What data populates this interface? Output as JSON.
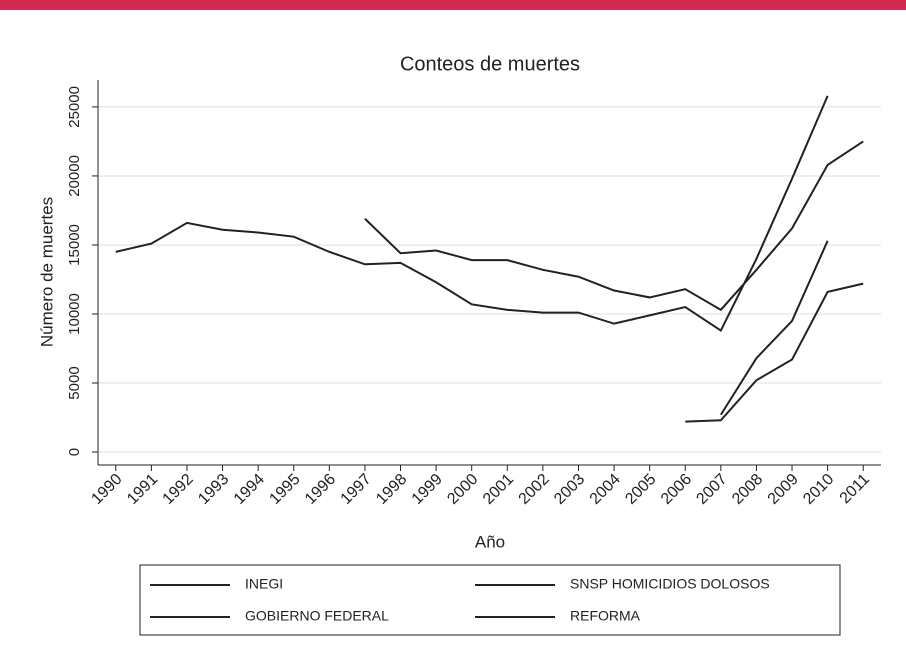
{
  "chart_data": {
    "type": "line",
    "title": "Conteos de muertes",
    "xlabel": "Año",
    "ylabel": "Número de muertes",
    "x": [
      1990,
      1991,
      1992,
      1993,
      1994,
      1995,
      1996,
      1997,
      1998,
      1999,
      2000,
      2001,
      2002,
      2003,
      2004,
      2005,
      2006,
      2007,
      2008,
      2009,
      2010,
      2011
    ],
    "series": [
      {
        "name": "INEGI",
        "color": "#222222",
        "values": [
          14500,
          15100,
          16600,
          16100,
          15900,
          15600,
          14500,
          13600,
          13700,
          12300,
          10700,
          10300,
          10100,
          10100,
          9300,
          9900,
          10500,
          8800,
          14000,
          19800,
          25800,
          null
        ]
      },
      {
        "name": "SNSP HOMICIDIOS DOLOSOS",
        "color": "#222222",
        "values": [
          null,
          null,
          null,
          null,
          null,
          null,
          null,
          16900,
          14400,
          14600,
          13900,
          13900,
          13200,
          12700,
          11700,
          11200,
          11800,
          10300,
          13200,
          16200,
          20800,
          22500
        ]
      },
      {
        "name": "GOBIERNO FEDERAL",
        "color": "#222222",
        "values": [
          null,
          null,
          null,
          null,
          null,
          null,
          null,
          null,
          null,
          null,
          null,
          null,
          null,
          null,
          null,
          null,
          null,
          2700,
          6800,
          9500,
          15300,
          null
        ]
      },
      {
        "name": "REFORMA",
        "color": "#222222",
        "values": [
          null,
          null,
          null,
          null,
          null,
          null,
          null,
          null,
          null,
          null,
          null,
          null,
          null,
          null,
          null,
          null,
          2200,
          2300,
          5200,
          6700,
          11600,
          12200
        ]
      }
    ],
    "xlim": [
      1989.5,
      2011.5
    ],
    "xticks": [
      1990,
      1991,
      1992,
      1993,
      1994,
      1995,
      1996,
      1997,
      1998,
      1999,
      2000,
      2001,
      2002,
      2003,
      2004,
      2005,
      2006,
      2007,
      2008,
      2009,
      2010,
      2011
    ],
    "ylim": [
      -940,
      26950
    ],
    "yticks": [
      0,
      5000,
      10000,
      15000,
      20000,
      25000
    ],
    "grid": true,
    "legend": "bottom"
  }
}
